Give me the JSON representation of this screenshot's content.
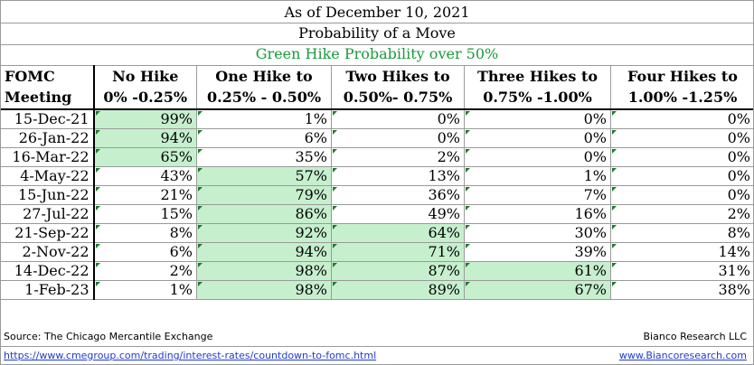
{
  "header": {
    "date_line": "As of December 10, 2021",
    "title": "Probability of a Move",
    "note": "Green Hike Probability over 50%"
  },
  "columns": [
    {
      "line1": "FOMC",
      "line2": "Meeting"
    },
    {
      "line1": "No Hike",
      "line2": "0% -0.25%"
    },
    {
      "line1": "One Hike to",
      "line2": "0.25% - 0.50%"
    },
    {
      "line1": "Two Hikes to",
      "line2": "0.50%- 0.75%"
    },
    {
      "line1": "Three Hikes to",
      "line2": "0.75% -1.00%"
    },
    {
      "line1": "Four Hikes to",
      "line2": "1.00% -1.25%"
    }
  ],
  "rows": [
    {
      "meeting": "15-Dec-21",
      "values": [
        "99%",
        "1%",
        "0%",
        "0%",
        "0%"
      ],
      "highlight": 0
    },
    {
      "meeting": "26-Jan-22",
      "values": [
        "94%",
        "6%",
        "0%",
        "0%",
        "0%"
      ],
      "highlight": 0
    },
    {
      "meeting": "16-Mar-22",
      "values": [
        "65%",
        "35%",
        "2%",
        "0%",
        "0%"
      ],
      "highlight": 0
    },
    {
      "meeting": "4-May-22",
      "values": [
        "43%",
        "57%",
        "13%",
        "1%",
        "0%"
      ],
      "highlight": 1
    },
    {
      "meeting": "15-Jun-22",
      "values": [
        "21%",
        "79%",
        "36%",
        "7%",
        "0%"
      ],
      "highlight": 1
    },
    {
      "meeting": "27-Jul-22",
      "values": [
        "15%",
        "86%",
        "49%",
        "16%",
        "2%"
      ],
      "highlight": 1
    },
    {
      "meeting": "21-Sep-22",
      "values": [
        "8%",
        "92%",
        "64%",
        "30%",
        "8%"
      ],
      "highlight": [
        1,
        2
      ]
    },
    {
      "meeting": "2-Nov-22",
      "values": [
        "6%",
        "94%",
        "71%",
        "39%",
        "14%"
      ],
      "highlight": [
        1,
        2
      ]
    },
    {
      "meeting": "14-Dec-22",
      "values": [
        "2%",
        "98%",
        "87%",
        "61%",
        "31%"
      ],
      "highlight": [
        1,
        2,
        3
      ]
    },
    {
      "meeting": "1-Feb-23",
      "values": [
        "1%",
        "98%",
        "89%",
        "67%",
        "38%"
      ],
      "highlight": [
        1,
        2,
        3
      ]
    }
  ],
  "footer": {
    "source": "Source: The Chicago Mercantile Exchange",
    "credit": "Bianco Research LLC",
    "link": "https://www.cmegroup.com/trading/interest-rates/countdown-to-fomc.html",
    "site": "www.Biancoresearch.com"
  },
  "colors": {
    "highlight": "#c6efce",
    "note_text": "#1a9a3a",
    "link": "#1f3ccf",
    "triangle": "#1e7a2e"
  }
}
